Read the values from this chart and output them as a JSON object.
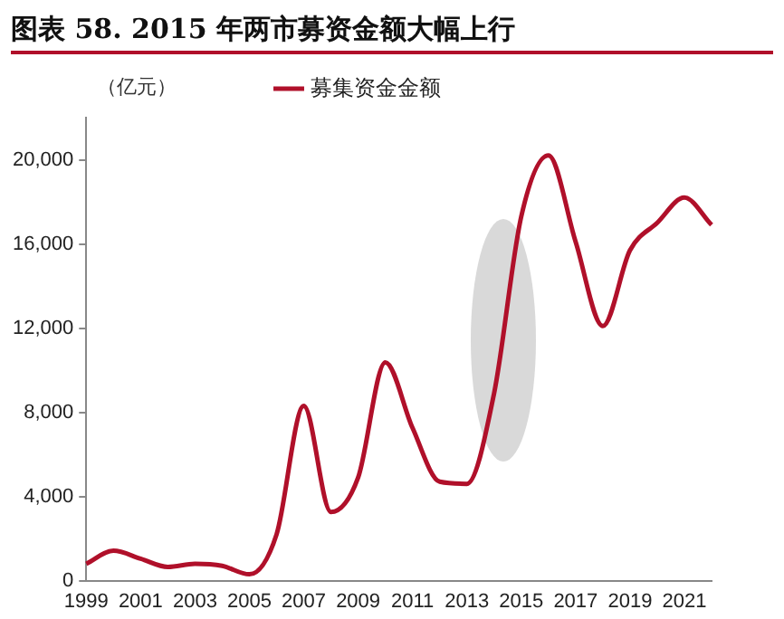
{
  "chart_data": {
    "type": "line",
    "title": "图表 58. 2015 年两市募资金额大幅上行",
    "ylabel": "（亿元）",
    "categories": [
      "1999",
      null,
      "2001",
      null,
      "2003",
      null,
      "2005",
      null,
      "2007",
      null,
      "2009",
      null,
      "2011",
      null,
      "2013",
      null,
      "2015",
      null,
      "2017",
      null,
      "2019",
      null,
      "2021",
      null
    ],
    "series": [
      {
        "name": "募集资金金额",
        "color": "#b0102a",
        "values": [
          800,
          1420,
          1040,
          650,
          800,
          700,
          300,
          2200,
          8300,
          3260,
          4900,
          10370,
          7260,
          4700,
          4600,
          8900,
          17300,
          20200,
          16100,
          12100,
          15700,
          17000,
          18200,
          16900
        ]
      }
    ],
    "ylim": [
      0,
      22000
    ],
    "yticks": [
      0,
      {
        "value": 4000,
        "label": "4,000"
      },
      {
        "value": 8000,
        "label": "8,000"
      },
      {
        "value": 12000,
        "label": "12,000"
      },
      {
        "value": 16000,
        "label": "16,000"
      },
      {
        "value": 20000,
        "label": "20,000"
      }
    ],
    "grid": false,
    "legend": "top",
    "marker": "none",
    "line_style": "solid"
  }
}
